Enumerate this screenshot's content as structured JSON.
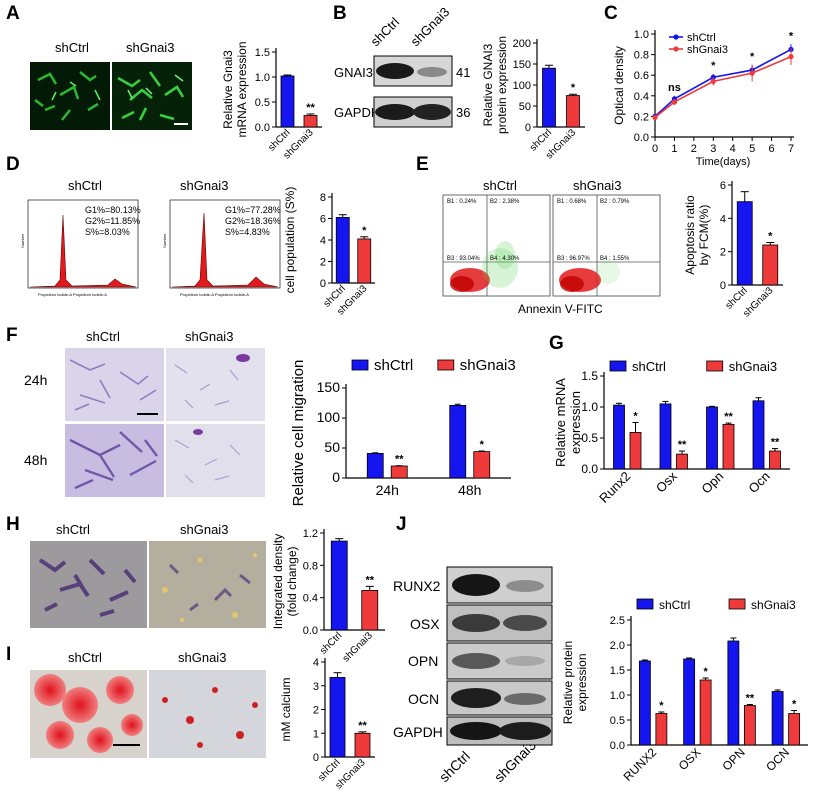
{
  "colors": {
    "ctrl": "#1515f0",
    "kd": "#ee3a3a",
    "axis": "#000000"
  },
  "panels": {
    "A": {
      "letter": "A",
      "ctrl_label": "shCtrl",
      "kd_label": "shGnai3"
    },
    "B": {
      "letter": "B",
      "ctrl_label": "shCtrl",
      "kd_label": "shGnai3",
      "row1_label": "GNAI3",
      "row1_kda": "41",
      "row2_label": "GAPDH",
      "row2_kda": "36"
    },
    "C": {
      "letter": "C"
    },
    "D": {
      "letter": "D",
      "ctrl_label": "shCtrl",
      "kd_label": "shGnai3",
      "ctrl_stats": [
        "G1%=80.13%",
        "G2%=11.85%",
        "S%=8.03%"
      ],
      "kd_stats": [
        "G1%=77.28%",
        "G2%=18.36%",
        "S%=4.83%"
      ],
      "axis_x_ctrl": "Propidium Iodide-A  Propidium Iodide-A",
      "axis_x_kd": "Propidium Iodide-A  Propidium Iodide-A",
      "axis_y": "Number"
    },
    "E": {
      "letter": "E",
      "ctrl_label": "shCtrl",
      "kd_label": "shGnai3",
      "ylabel": "PI",
      "xlabel": "Annexin V-FITC",
      "ctrl_quadrants": [
        "B1 : 0.24%",
        "B2 : 2.38%",
        "B3 : 93.04%",
        "B4 : 4.30%"
      ],
      "kd_quadrants": [
        "B1 : 0.68%",
        "B2 : 0.79%",
        "B3 : 96.97%",
        "B4 : 1.55%"
      ]
    },
    "F": {
      "letter": "F",
      "ctrl_label": "shCtrl",
      "kd_label": "shGnai3",
      "row1": "24h",
      "row2": "48h"
    },
    "G": {
      "letter": "G"
    },
    "H": {
      "letter": "H",
      "ctrl_label": "shCtrl",
      "kd_label": "shGnai3"
    },
    "I": {
      "letter": "I",
      "ctrl_label": "shCtrl",
      "kd_label": "shGnai3"
    },
    "J": {
      "letter": "J",
      "rows": [
        "RUNX2",
        "OSX",
        "OPN",
        "OCN",
        "GAPDH"
      ],
      "ctrl_label": "shCtrl",
      "kd_label": "shGnai3"
    }
  },
  "chart_data": [
    {
      "id": "A",
      "type": "bar",
      "categories": [
        "shCtrl",
        "shGnai3"
      ],
      "values": [
        1.02,
        0.23
      ],
      "errors": [
        0.02,
        0.03
      ],
      "ylabel": "Relative Gnai3\nmRNA expression",
      "ylim": [
        0,
        1.5
      ],
      "yticks": [
        "0.0",
        "0.5",
        "1.0",
        "1.5"
      ],
      "sig": [
        "",
        "**"
      ]
    },
    {
      "id": "B",
      "type": "bar",
      "categories": [
        "shCtrl",
        "shGnai3"
      ],
      "values": [
        140,
        75
      ],
      "errors": [
        7,
        3
      ],
      "ylabel": "Relative GNAI3\nprotein expression",
      "ylim": [
        0,
        200
      ],
      "yticks": [
        "0",
        "50",
        "100",
        "150",
        "200"
      ],
      "sig": [
        "",
        "*"
      ]
    },
    {
      "id": "C",
      "type": "line",
      "xlabel": "Time(days)",
      "ylabel": "Optical density",
      "xlim": [
        0,
        7
      ],
      "ylim": [
        0,
        1.0
      ],
      "xticks": [
        "0",
        "1",
        "2",
        "3",
        "4",
        "5",
        "6",
        "7"
      ],
      "yticks": [
        "0.0",
        "0.2",
        "0.4",
        "0.6",
        "0.8",
        "1.0"
      ],
      "x": [
        0,
        1,
        3,
        5,
        7
      ],
      "series": [
        {
          "name": "shCtrl",
          "values": [
            0.2,
            0.37,
            0.58,
            0.65,
            0.85
          ],
          "errors": [
            0.02,
            0.03,
            0.03,
            0.05,
            0.05
          ]
        },
        {
          "name": "shGnai3",
          "values": [
            0.19,
            0.34,
            0.54,
            0.62,
            0.78
          ],
          "errors": [
            0.02,
            0.03,
            0.04,
            0.08,
            0.08
          ]
        }
      ],
      "annotations": [
        {
          "x": 1,
          "text": "ns"
        },
        {
          "x": 3,
          "text": "*"
        },
        {
          "x": 5,
          "text": "*"
        },
        {
          "x": 7,
          "text": "*"
        }
      ]
    },
    {
      "id": "D",
      "type": "bar",
      "categories": [
        "shCtrl",
        "shGnai3"
      ],
      "values": [
        6.1,
        4.1
      ],
      "errors": [
        0.25,
        0.2
      ],
      "ylabel": "cell population (S%)",
      "ylim": [
        0,
        8
      ],
      "yticks": [
        "0",
        "2",
        "4",
        "6",
        "8"
      ],
      "sig": [
        "",
        "*"
      ]
    },
    {
      "id": "E",
      "type": "bar",
      "categories": [
        "shCtrl",
        "shGnai3"
      ],
      "values": [
        5.0,
        2.4
      ],
      "errors": [
        0.6,
        0.15
      ],
      "ylabel": "Apoptosis ratio\nby FCM(%)",
      "ylim": [
        0,
        6
      ],
      "yticks": [
        "0",
        "2",
        "4",
        "6"
      ],
      "sig": [
        "",
        "*"
      ]
    },
    {
      "id": "F",
      "type": "bar",
      "categories": [
        "24h",
        "48h"
      ],
      "ylabel": "Relative cell migration",
      "ylim": [
        0,
        150
      ],
      "yticks": [
        "0",
        "50",
        "100",
        "150"
      ],
      "legend": "top",
      "series": [
        {
          "name": "shCtrl",
          "values": [
            41,
            121
          ],
          "errors": [
            1,
            2
          ],
          "sig": [
            "",
            ""
          ]
        },
        {
          "name": "shGnai3",
          "values": [
            20,
            44
          ],
          "errors": [
            0.5,
            1
          ],
          "sig": [
            "**",
            "*"
          ]
        }
      ]
    },
    {
      "id": "G",
      "type": "bar",
      "categories": [
        "Runx2",
        "Osx",
        "Opn",
        "Ocn"
      ],
      "ylabel": "Relative mRNA\nexpression",
      "ylim": [
        0,
        1.5
      ],
      "yticks": [
        "0.0",
        "0.5",
        "1.0",
        "1.5"
      ],
      "legend": "top",
      "series": [
        {
          "name": "shCtrl",
          "values": [
            1.03,
            1.05,
            1.0,
            1.1
          ],
          "errors": [
            0.03,
            0.04,
            0.01,
            0.05
          ],
          "sig": [
            "",
            "",
            "",
            ""
          ]
        },
        {
          "name": "shGnai3",
          "values": [
            0.59,
            0.24,
            0.72,
            0.29
          ],
          "errors": [
            0.16,
            0.05,
            0.02,
            0.04
          ],
          "sig": [
            "*",
            "**",
            "**",
            "**"
          ]
        }
      ]
    },
    {
      "id": "H",
      "type": "bar",
      "categories": [
        "shCtrl",
        "shGnai3"
      ],
      "values": [
        1.1,
        0.49
      ],
      "errors": [
        0.03,
        0.05
      ],
      "ylabel": "Integrated density\n(fold change)",
      "ylim": [
        0,
        1.2
      ],
      "yticks": [
        "0.0",
        "0.4",
        "0.8",
        "1.2"
      ],
      "sig": [
        "",
        "**"
      ]
    },
    {
      "id": "I",
      "type": "bar",
      "categories": [
        "shCtrl",
        "shGnai3"
      ],
      "values": [
        3.35,
        1.0
      ],
      "errors": [
        0.2,
        0.06
      ],
      "ylabel": "mM calcium",
      "ylim": [
        0,
        4
      ],
      "yticks": [
        "0",
        "1",
        "2",
        "3",
        "4"
      ],
      "sig": [
        "",
        "**"
      ]
    },
    {
      "id": "J",
      "type": "bar",
      "categories": [
        "RUNX2",
        "OSX",
        "OPN",
        "OCN"
      ],
      "ylabel": "Relative protein\nexpression",
      "ylim": [
        0,
        2.5
      ],
      "yticks": [
        "0.0",
        "0.5",
        "1.0",
        "1.5",
        "2.0",
        "2.5"
      ],
      "legend": "top",
      "series": [
        {
          "name": "shCtrl",
          "values": [
            1.68,
            1.72,
            2.08,
            1.07
          ],
          "errors": [
            0.02,
            0.02,
            0.06,
            0.03
          ],
          "sig": [
            "",
            "",
            "",
            ""
          ]
        },
        {
          "name": "shGnai3",
          "values": [
            0.63,
            1.3,
            0.79,
            0.63
          ],
          "errors": [
            0.03,
            0.04,
            0.02,
            0.06
          ],
          "sig": [
            "*",
            "*",
            "**",
            "*"
          ]
        }
      ]
    }
  ]
}
